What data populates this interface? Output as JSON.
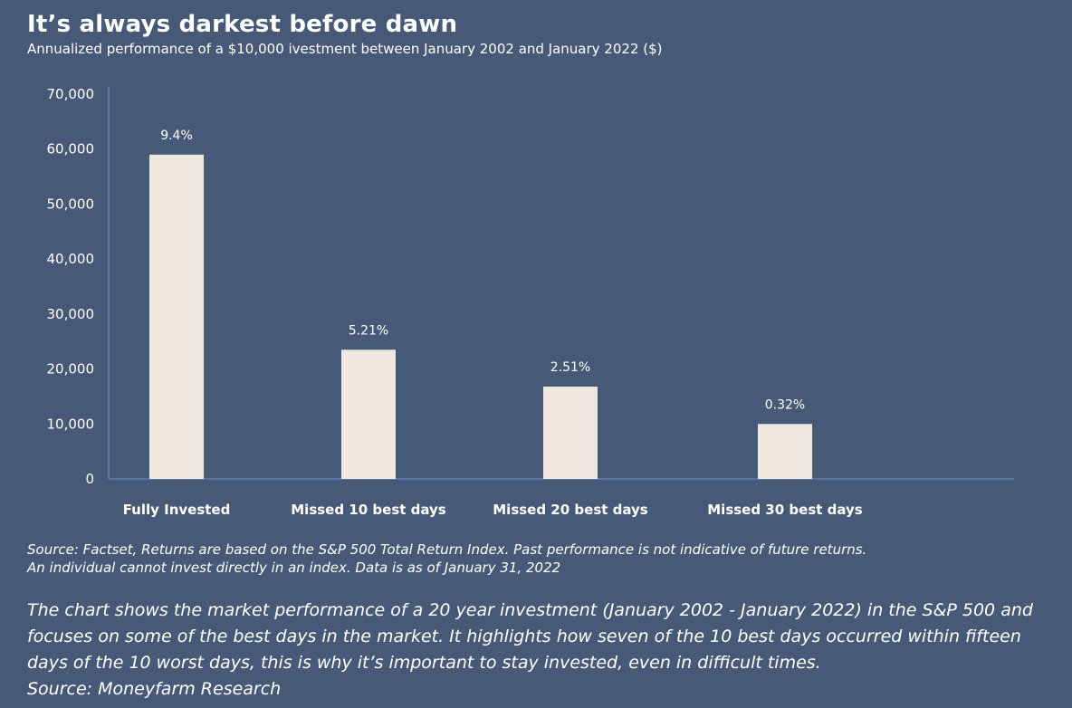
{
  "title": "It’s always darkest before dawn",
  "subtitle": "Annualized performance of a $10,000 ivestment between January 2002 and January 2022 ($)",
  "colors": {
    "background": "#465a78",
    "bar": "#efe8df",
    "axis": "#5f7fb3",
    "text": "#ffffff"
  },
  "chart_data": {
    "type": "bar",
    "categories": [
      "Fully Invested",
      "Missed 10 best days",
      "Missed 20 best days",
      "Missed 30 best days"
    ],
    "values": [
      59000,
      23500,
      16800,
      10000
    ],
    "data_labels": [
      "9.4%",
      "5.21%",
      "2.51%",
      "0.32%"
    ],
    "ylim": [
      0,
      70000
    ],
    "yticks": [
      0,
      10000,
      20000,
      30000,
      40000,
      50000,
      60000,
      70000
    ],
    "ytick_labels": [
      "0",
      "10,000",
      "20,000",
      "30,000",
      "40,000",
      "50,000",
      "60,000",
      "70,000"
    ],
    "grid": false,
    "legend": "none"
  },
  "source_lines": [
    "Source: Factset, Returns are based on the S&P 500 Total Return Index. Past performance is not indicative of future returns.",
    "An individual cannot invest directly in an index. Data is as of January 31, 2022"
  ],
  "caption_lines": [
    "The chart shows the market performance of a 20 year investment (January 2002 - January 2022) in the S&P 500 and",
    "focuses on some of the best days in the market. It highlights how seven of the 10 best days occurred within fifteen",
    "days of the 10 worst days, this is why it’s important to stay invested, even in difficult times.",
    "Source: Moneyfarm Research"
  ]
}
